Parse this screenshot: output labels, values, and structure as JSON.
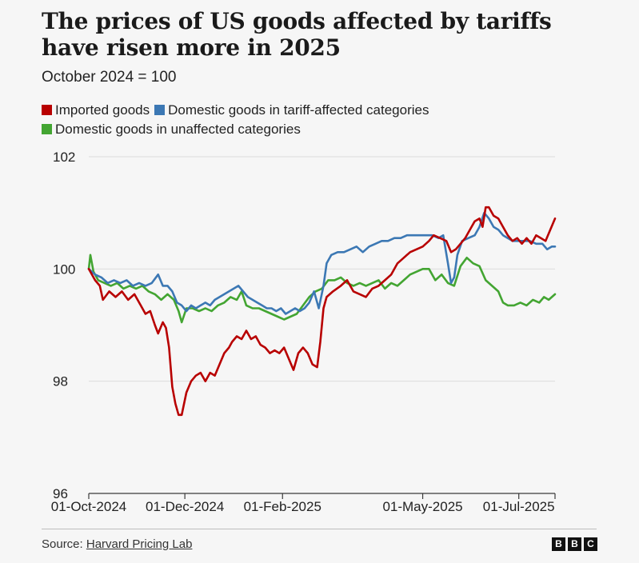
{
  "chart_data": {
    "type": "line",
    "title": "The prices of US goods affected by tariffs have risen more in 2025",
    "subtitle": "October 2024 = 100",
    "ylim": [
      96,
      102
    ],
    "yticks": [
      "102",
      "100",
      "98",
      "96"
    ],
    "xlim": [
      "2024-10-01",
      "2025-07-24"
    ],
    "xticks": [
      {
        "date": "2024-10-01",
        "label": "01-Oct-2024"
      },
      {
        "date": "2024-12-01",
        "label": "01-Dec-2024"
      },
      {
        "date": "2025-02-01",
        "label": "01-Feb-2025"
      },
      {
        "date": "2025-05-01",
        "label": "01-May-2025"
      },
      {
        "date": "2025-07-01",
        "label": "01-Jul-2025"
      }
    ],
    "series": [
      {
        "name": "Imported goods",
        "color": "#b80000",
        "points": [
          [
            "2024-10-01",
            100.0
          ],
          [
            "2024-10-05",
            99.8
          ],
          [
            "2024-10-08",
            99.7
          ],
          [
            "2024-10-10",
            99.45
          ],
          [
            "2024-10-14",
            99.6
          ],
          [
            "2024-10-18",
            99.5
          ],
          [
            "2024-10-22",
            99.6
          ],
          [
            "2024-10-26",
            99.45
          ],
          [
            "2024-10-30",
            99.55
          ],
          [
            "2024-11-03",
            99.35
          ],
          [
            "2024-11-06",
            99.2
          ],
          [
            "2024-11-09",
            99.25
          ],
          [
            "2024-11-12",
            99.0
          ],
          [
            "2024-11-14",
            98.85
          ],
          [
            "2024-11-17",
            99.05
          ],
          [
            "2024-11-19",
            98.95
          ],
          [
            "2024-11-21",
            98.6
          ],
          [
            "2024-11-23",
            97.9
          ],
          [
            "2024-11-25",
            97.6
          ],
          [
            "2024-11-27",
            97.4
          ],
          [
            "2024-11-29",
            97.4
          ],
          [
            "2024-12-02",
            97.8
          ],
          [
            "2024-12-05",
            98.0
          ],
          [
            "2024-12-08",
            98.1
          ],
          [
            "2024-12-11",
            98.15
          ],
          [
            "2024-12-14",
            98.0
          ],
          [
            "2024-12-17",
            98.15
          ],
          [
            "2024-12-20",
            98.1
          ],
          [
            "2024-12-23",
            98.3
          ],
          [
            "2024-12-26",
            98.5
          ],
          [
            "2024-12-29",
            98.6
          ],
          [
            "2024-12-31",
            98.7
          ],
          [
            "2025-01-03",
            98.8
          ],
          [
            "2025-01-06",
            98.75
          ],
          [
            "2025-01-09",
            98.9
          ],
          [
            "2025-01-12",
            98.75
          ],
          [
            "2025-01-15",
            98.8
          ],
          [
            "2025-01-18",
            98.65
          ],
          [
            "2025-01-21",
            98.6
          ],
          [
            "2025-01-24",
            98.5
          ],
          [
            "2025-01-27",
            98.55
          ],
          [
            "2025-01-30",
            98.5
          ],
          [
            "2025-02-02",
            98.6
          ],
          [
            "2025-02-05",
            98.4
          ],
          [
            "2025-02-08",
            98.2
          ],
          [
            "2025-02-11",
            98.5
          ],
          [
            "2025-02-14",
            98.6
          ],
          [
            "2025-02-17",
            98.5
          ],
          [
            "2025-02-20",
            98.3
          ],
          [
            "2025-02-23",
            98.25
          ],
          [
            "2025-02-25",
            98.7
          ],
          [
            "2025-02-27",
            99.3
          ],
          [
            "2025-03-01",
            99.5
          ],
          [
            "2025-03-05",
            99.6
          ],
          [
            "2025-03-10",
            99.7
          ],
          [
            "2025-03-14",
            99.8
          ],
          [
            "2025-03-18",
            99.6
          ],
          [
            "2025-03-22",
            99.55
          ],
          [
            "2025-03-26",
            99.5
          ],
          [
            "2025-03-30",
            99.65
          ],
          [
            "2025-04-03",
            99.7
          ],
          [
            "2025-04-07",
            99.8
          ],
          [
            "2025-04-11",
            99.9
          ],
          [
            "2025-04-15",
            100.1
          ],
          [
            "2025-04-19",
            100.2
          ],
          [
            "2025-04-23",
            100.3
          ],
          [
            "2025-04-27",
            100.35
          ],
          [
            "2025-05-01",
            100.4
          ],
          [
            "2025-05-05",
            100.5
          ],
          [
            "2025-05-08",
            100.6
          ],
          [
            "2025-05-12",
            100.55
          ],
          [
            "2025-05-16",
            100.5
          ],
          [
            "2025-05-19",
            100.3
          ],
          [
            "2025-05-22",
            100.35
          ],
          [
            "2025-05-25",
            100.45
          ],
          [
            "2025-05-28",
            100.55
          ],
          [
            "2025-05-31",
            100.7
          ],
          [
            "2025-06-03",
            100.85
          ],
          [
            "2025-06-06",
            100.9
          ],
          [
            "2025-06-08",
            100.75
          ],
          [
            "2025-06-10",
            101.1
          ],
          [
            "2025-06-12",
            101.1
          ],
          [
            "2025-06-15",
            100.95
          ],
          [
            "2025-06-18",
            100.9
          ],
          [
            "2025-06-21",
            100.75
          ],
          [
            "2025-06-24",
            100.6
          ],
          [
            "2025-06-27",
            100.5
          ],
          [
            "2025-06-30",
            100.55
          ],
          [
            "2025-07-03",
            100.45
          ],
          [
            "2025-07-06",
            100.55
          ],
          [
            "2025-07-09",
            100.45
          ],
          [
            "2025-07-12",
            100.6
          ],
          [
            "2025-07-15",
            100.55
          ],
          [
            "2025-07-18",
            100.5
          ],
          [
            "2025-07-21",
            100.7
          ],
          [
            "2025-07-24",
            100.9
          ]
        ]
      },
      {
        "name": "Domestic goods in tariff-affected categories",
        "color": "#3c78b4",
        "points": [
          [
            "2024-10-01",
            100.0
          ],
          [
            "2024-10-05",
            99.9
          ],
          [
            "2024-10-09",
            99.85
          ],
          [
            "2024-10-13",
            99.75
          ],
          [
            "2024-10-17",
            99.8
          ],
          [
            "2024-10-21",
            99.75
          ],
          [
            "2024-10-25",
            99.8
          ],
          [
            "2024-10-29",
            99.7
          ],
          [
            "2024-11-02",
            99.75
          ],
          [
            "2024-11-06",
            99.7
          ],
          [
            "2024-11-10",
            99.75
          ],
          [
            "2024-11-14",
            99.9
          ],
          [
            "2024-11-17",
            99.7
          ],
          [
            "2024-11-20",
            99.7
          ],
          [
            "2024-11-23",
            99.6
          ],
          [
            "2024-11-26",
            99.4
          ],
          [
            "2024-11-29",
            99.35
          ],
          [
            "2024-12-02",
            99.25
          ],
          [
            "2024-12-05",
            99.35
          ],
          [
            "2024-12-08",
            99.3
          ],
          [
            "2024-12-11",
            99.35
          ],
          [
            "2024-12-14",
            99.4
          ],
          [
            "2024-12-17",
            99.35
          ],
          [
            "2024-12-20",
            99.45
          ],
          [
            "2024-12-23",
            99.5
          ],
          [
            "2024-12-26",
            99.55
          ],
          [
            "2024-12-29",
            99.6
          ],
          [
            "2025-01-01",
            99.65
          ],
          [
            "2025-01-04",
            99.7
          ],
          [
            "2025-01-07",
            99.6
          ],
          [
            "2025-01-10",
            99.5
          ],
          [
            "2025-01-13",
            99.45
          ],
          [
            "2025-01-16",
            99.4
          ],
          [
            "2025-01-19",
            99.35
          ],
          [
            "2025-01-22",
            99.3
          ],
          [
            "2025-01-25",
            99.3
          ],
          [
            "2025-01-28",
            99.25
          ],
          [
            "2025-01-31",
            99.3
          ],
          [
            "2025-02-03",
            99.2
          ],
          [
            "2025-02-06",
            99.25
          ],
          [
            "2025-02-09",
            99.3
          ],
          [
            "2025-02-12",
            99.25
          ],
          [
            "2025-02-15",
            99.3
          ],
          [
            "2025-02-18",
            99.4
          ],
          [
            "2025-02-21",
            99.6
          ],
          [
            "2025-02-24",
            99.3
          ],
          [
            "2025-02-27",
            99.7
          ],
          [
            "2025-03-01",
            100.1
          ],
          [
            "2025-03-04",
            100.25
          ],
          [
            "2025-03-08",
            100.3
          ],
          [
            "2025-03-12",
            100.3
          ],
          [
            "2025-03-16",
            100.35
          ],
          [
            "2025-03-20",
            100.4
          ],
          [
            "2025-03-24",
            100.3
          ],
          [
            "2025-03-28",
            100.4
          ],
          [
            "2025-04-01",
            100.45
          ],
          [
            "2025-04-05",
            100.5
          ],
          [
            "2025-04-09",
            100.5
          ],
          [
            "2025-04-13",
            100.55
          ],
          [
            "2025-04-17",
            100.55
          ],
          [
            "2025-04-21",
            100.6
          ],
          [
            "2025-04-25",
            100.6
          ],
          [
            "2025-04-29",
            100.6
          ],
          [
            "2025-05-03",
            100.6
          ],
          [
            "2025-05-07",
            100.6
          ],
          [
            "2025-05-11",
            100.55
          ],
          [
            "2025-05-14",
            100.6
          ],
          [
            "2025-05-17",
            100.1
          ],
          [
            "2025-05-19",
            99.75
          ],
          [
            "2025-05-21",
            99.85
          ],
          [
            "2025-05-23",
            100.25
          ],
          [
            "2025-05-26",
            100.5
          ],
          [
            "2025-05-30",
            100.55
          ],
          [
            "2025-06-03",
            100.6
          ],
          [
            "2025-06-06",
            100.75
          ],
          [
            "2025-06-09",
            101.0
          ],
          [
            "2025-06-12",
            100.9
          ],
          [
            "2025-06-15",
            100.75
          ],
          [
            "2025-06-18",
            100.7
          ],
          [
            "2025-06-21",
            100.6
          ],
          [
            "2025-06-24",
            100.55
          ],
          [
            "2025-06-27",
            100.5
          ],
          [
            "2025-06-30",
            100.5
          ],
          [
            "2025-07-04",
            100.5
          ],
          [
            "2025-07-08",
            100.5
          ],
          [
            "2025-07-12",
            100.45
          ],
          [
            "2025-07-16",
            100.45
          ],
          [
            "2025-07-19",
            100.35
          ],
          [
            "2025-07-22",
            100.4
          ],
          [
            "2025-07-24",
            100.4
          ]
        ]
      },
      {
        "name": "Domestic goods in unaffected categories",
        "color": "#43a532",
        "points": [
          [
            "2024-10-01",
            100.0
          ],
          [
            "2024-10-02",
            100.25
          ],
          [
            "2024-10-04",
            99.95
          ],
          [
            "2024-10-07",
            99.8
          ],
          [
            "2024-10-11",
            99.75
          ],
          [
            "2024-10-15",
            99.7
          ],
          [
            "2024-10-19",
            99.75
          ],
          [
            "2024-10-23",
            99.65
          ],
          [
            "2024-10-27",
            99.7
          ],
          [
            "2024-10-31",
            99.65
          ],
          [
            "2024-11-04",
            99.7
          ],
          [
            "2024-11-08",
            99.6
          ],
          [
            "2024-11-12",
            99.55
          ],
          [
            "2024-11-16",
            99.45
          ],
          [
            "2024-11-20",
            99.55
          ],
          [
            "2024-11-24",
            99.45
          ],
          [
            "2024-11-27",
            99.25
          ],
          [
            "2024-11-29",
            99.05
          ],
          [
            "2024-12-02",
            99.3
          ],
          [
            "2024-12-06",
            99.3
          ],
          [
            "2024-12-10",
            99.25
          ],
          [
            "2024-12-14",
            99.3
          ],
          [
            "2024-12-18",
            99.25
          ],
          [
            "2024-12-22",
            99.35
          ],
          [
            "2024-12-26",
            99.4
          ],
          [
            "2024-12-30",
            99.5
          ],
          [
            "2025-01-03",
            99.45
          ],
          [
            "2025-01-06",
            99.6
          ],
          [
            "2025-01-09",
            99.35
          ],
          [
            "2025-01-13",
            99.3
          ],
          [
            "2025-01-17",
            99.3
          ],
          [
            "2025-01-21",
            99.25
          ],
          [
            "2025-01-25",
            99.2
          ],
          [
            "2025-01-29",
            99.15
          ],
          [
            "2025-02-02",
            99.1
          ],
          [
            "2025-02-06",
            99.15
          ],
          [
            "2025-02-10",
            99.2
          ],
          [
            "2025-02-14",
            99.35
          ],
          [
            "2025-02-18",
            99.5
          ],
          [
            "2025-02-22",
            99.6
          ],
          [
            "2025-02-26",
            99.65
          ],
          [
            "2025-03-02",
            99.8
          ],
          [
            "2025-03-06",
            99.8
          ],
          [
            "2025-03-10",
            99.85
          ],
          [
            "2025-03-14",
            99.75
          ],
          [
            "2025-03-18",
            99.7
          ],
          [
            "2025-03-22",
            99.75
          ],
          [
            "2025-03-26",
            99.7
          ],
          [
            "2025-03-30",
            99.75
          ],
          [
            "2025-04-03",
            99.8
          ],
          [
            "2025-04-07",
            99.65
          ],
          [
            "2025-04-11",
            99.75
          ],
          [
            "2025-04-15",
            99.7
          ],
          [
            "2025-04-19",
            99.8
          ],
          [
            "2025-04-23",
            99.9
          ],
          [
            "2025-04-27",
            99.95
          ],
          [
            "2025-05-01",
            100.0
          ],
          [
            "2025-05-05",
            100.0
          ],
          [
            "2025-05-09",
            99.8
          ],
          [
            "2025-05-13",
            99.9
          ],
          [
            "2025-05-17",
            99.75
          ],
          [
            "2025-05-21",
            99.7
          ],
          [
            "2025-05-25",
            100.05
          ],
          [
            "2025-05-29",
            100.2
          ],
          [
            "2025-06-02",
            100.1
          ],
          [
            "2025-06-06",
            100.05
          ],
          [
            "2025-06-10",
            99.8
          ],
          [
            "2025-06-14",
            99.7
          ],
          [
            "2025-06-18",
            99.6
          ],
          [
            "2025-06-21",
            99.4
          ],
          [
            "2025-06-24",
            99.35
          ],
          [
            "2025-06-28",
            99.35
          ],
          [
            "2025-07-02",
            99.4
          ],
          [
            "2025-07-06",
            99.35
          ],
          [
            "2025-07-10",
            99.45
          ],
          [
            "2025-07-14",
            99.4
          ],
          [
            "2025-07-17",
            99.5
          ],
          [
            "2025-07-20",
            99.45
          ],
          [
            "2025-07-24",
            99.55
          ]
        ]
      }
    ]
  },
  "source": {
    "label": "Source: ",
    "link_text": "Harvard Pricing Lab"
  },
  "logo": {
    "letters": [
      "B",
      "B",
      "C"
    ]
  },
  "colors": {
    "grid": "#dcdcdc",
    "axis": "#3a3a3a",
    "background": "#f6f6f6"
  }
}
